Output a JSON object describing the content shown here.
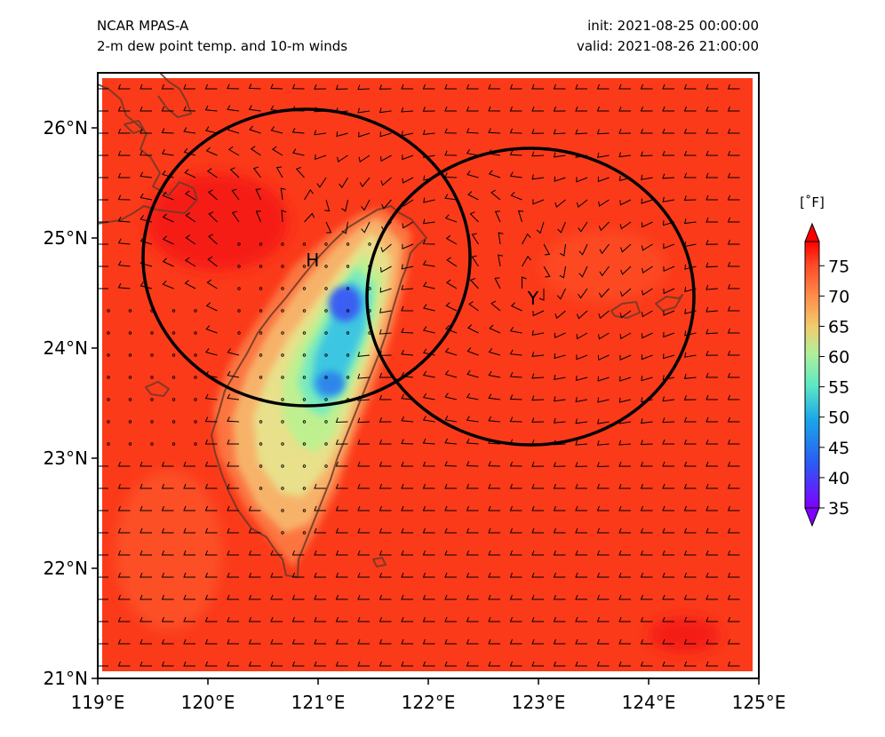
{
  "header": {
    "model": "NCAR MPAS-A",
    "field": "2-m dew point temp. and 10-m winds",
    "init": "init: 2021-08-25 00:00:00",
    "valid": "valid: 2021-08-26 21:00:00"
  },
  "map": {
    "lon_range": [
      119,
      125
    ],
    "lat_range": [
      21,
      26.5
    ],
    "lon_ticks": [
      "119°E",
      "120°E",
      "121°E",
      "122°E",
      "123°E",
      "124°E",
      "125°E"
    ],
    "lat_ticks": [
      "21°N",
      "22°N",
      "23°N",
      "24°N",
      "25°N",
      "26°N"
    ],
    "background_color": "#fb3a1a",
    "coastline_color": "#6b3a28"
  },
  "systems": [
    {
      "label": "H",
      "lon": 120.95,
      "lat": 24.8
    },
    {
      "label": "Y",
      "lon": 122.95,
      "lat": 24.45
    }
  ],
  "colorbar": {
    "unit": "[˚F]",
    "min": 35,
    "max": 79,
    "ticks": [
      "35",
      "40",
      "45",
      "50",
      "55",
      "60",
      "65",
      "70",
      "75"
    ],
    "colormap": "rainbow"
  }
}
